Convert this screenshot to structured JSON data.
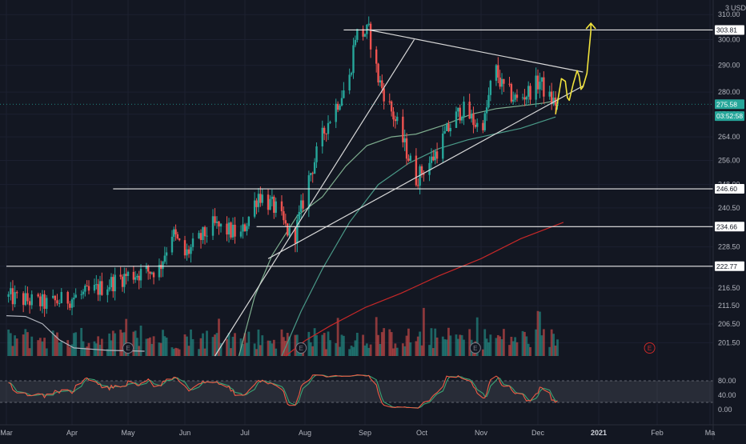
{
  "chart_data": {
    "type": "candlestick",
    "currency_label": "USD",
    "scale_label": "3",
    "year_label": "2021",
    "x_axis": {
      "labels": [
        {
          "label": "Mar",
          "date": "2020-03-01"
        },
        {
          "label": "Apr",
          "date": "2020-04-01"
        },
        {
          "label": "May",
          "date": "2020-05-01"
        },
        {
          "label": "Jun",
          "date": "2020-06-01"
        },
        {
          "label": "Jul",
          "date": "2020-07-01"
        },
        {
          "label": "Aug",
          "date": "2020-08-01"
        },
        {
          "label": "Sep",
          "date": "2020-09-01"
        },
        {
          "label": "Oct",
          "date": "2020-10-01"
        },
        {
          "label": "Nov",
          "date": "2020-11-01"
        },
        {
          "label": "Dec",
          "date": "2020-12-01"
        },
        {
          "label": "2021",
          "date": "2021-01-01"
        },
        {
          "label": "Feb",
          "date": "2021-02-01"
        },
        {
          "label": "Ma",
          "date": "2021-03-01"
        }
      ]
    },
    "y_axis": {
      "scale": "log",
      "range": [
        198,
        316
      ],
      "ticks": [
        310.0,
        300.0,
        290.0,
        280.0,
        272.0,
        264.0,
        256.0,
        248.0,
        240.5,
        234.66,
        228.5,
        222.77,
        216.5,
        211.5,
        206.5,
        201.5
      ]
    },
    "price_badges": [
      {
        "label": "303.81",
        "value": 303.81,
        "color": "#ffffff"
      },
      {
        "label": "275.58",
        "value": 275.58,
        "color": "#26a69a"
      },
      {
        "label": "03:52:58",
        "value": 271.3,
        "color": "#26a69a"
      },
      {
        "label": "246.60",
        "value": 246.6,
        "color": "#ffffff"
      },
      {
        "label": "234.66",
        "value": 234.66,
        "color": "#ffffff"
      },
      {
        "label": "222.77",
        "value": 222.77,
        "color": "#ffffff"
      }
    ],
    "horizontal_levels": [
      {
        "value": 303.81,
        "from": "2020-08-21"
      },
      {
        "value": 246.6,
        "from": "2020-04-23"
      },
      {
        "value": 234.66,
        "from": "2020-07-07"
      },
      {
        "value": 222.77,
        "from": "2020-03-01"
      }
    ],
    "trend_lines": [
      {
        "name": "upper-triangle",
        "points": [
          [
            "2020-09-02",
            304.0
          ],
          [
            "2020-12-24",
            287.5
          ]
        ]
      },
      {
        "name": "lower-triangle",
        "points": [
          [
            "2020-07-13",
            225.0
          ],
          [
            "2020-12-24",
            282.3
          ]
        ]
      },
      {
        "name": "steep-uptrend",
        "points": [
          [
            "2020-06-16",
            198.0
          ],
          [
            "2020-09-27",
            300.0
          ]
        ]
      }
    ],
    "moving_averages": [
      {
        "period": 20,
        "color": "#7fae8f",
        "points": [
          [
            "2020-06-28",
            198
          ],
          [
            "2020-07-06",
            214
          ],
          [
            "2020-07-15",
            226
          ],
          [
            "2020-07-28",
            238
          ],
          [
            "2020-08-10",
            244
          ],
          [
            "2020-08-22",
            254
          ],
          [
            "2020-09-02",
            261
          ],
          [
            "2020-09-15",
            264
          ],
          [
            "2020-09-28",
            265
          ],
          [
            "2020-10-12",
            268
          ],
          [
            "2020-10-27",
            272
          ],
          [
            "2020-11-09",
            274
          ],
          [
            "2020-11-22",
            275
          ],
          [
            "2020-12-04",
            276
          ],
          [
            "2020-12-11",
            277
          ]
        ]
      },
      {
        "period": 50,
        "color": "#4a9a88",
        "points": [
          [
            "2020-07-20",
            198
          ],
          [
            "2020-07-30",
            210
          ],
          [
            "2020-08-10",
            222
          ],
          [
            "2020-08-24",
            236
          ],
          [
            "2020-09-08",
            248
          ],
          [
            "2020-09-24",
            255
          ],
          [
            "2020-10-10",
            260
          ],
          [
            "2020-10-25",
            263
          ],
          [
            "2020-11-08",
            265
          ],
          [
            "2020-11-22",
            267
          ],
          [
            "2020-12-10",
            271
          ]
        ]
      },
      {
        "period": 200,
        "color": "#c62828",
        "points": [
          [
            "2020-07-22",
            198
          ],
          [
            "2020-08-01",
            202
          ],
          [
            "2020-08-14",
            206
          ],
          [
            "2020-09-01",
            211
          ],
          [
            "2020-09-20",
            215
          ],
          [
            "2020-10-10",
            220
          ],
          [
            "2020-11-01",
            225
          ],
          [
            "2020-11-22",
            231
          ],
          [
            "2020-12-14",
            236
          ]
        ]
      }
    ],
    "volume_ma": {
      "color": "#b2b5be",
      "points": [
        [
          "2020-03-01",
          0.5
        ],
        [
          "2020-03-10",
          0.49
        ],
        [
          "2020-03-18",
          0.4
        ],
        [
          "2020-03-26",
          0.2
        ],
        [
          "2020-04-02",
          0.1
        ],
        [
          "2020-04-20",
          0.07
        ],
        [
          "2020-05-10",
          0.06
        ]
      ]
    },
    "earnings_markers": [
      {
        "label": "E",
        "date": "2020-05-01",
        "color": "#787b86"
      },
      {
        "label": "E",
        "date": "2020-07-30",
        "color": "#787b86"
      },
      {
        "label": "E",
        "date": "2020-10-29",
        "color": "#787b86"
      },
      {
        "label": "E",
        "date": "2021-01-28",
        "color": "#c62828"
      }
    ],
    "forecast_path": {
      "color": "#f0e23c",
      "points": [
        [
          "2020-12-10",
          272
        ],
        [
          "2020-12-13",
          285
        ],
        [
          "2020-12-15",
          284
        ],
        [
          "2020-12-16",
          278
        ],
        [
          "2020-12-17",
          277
        ],
        [
          "2020-12-19",
          283
        ],
        [
          "2020-12-21",
          288
        ],
        [
          "2020-12-22",
          286
        ],
        [
          "2020-12-23",
          281
        ],
        [
          "2020-12-24",
          282
        ],
        [
          "2020-12-26",
          287
        ],
        [
          "2020-12-27",
          295
        ],
        [
          "2020-12-28",
          303.5
        ]
      ],
      "arrow_to": [
        "2020-12-28",
        306.5
      ]
    },
    "stochastic": {
      "range": [
        0,
        100
      ],
      "ticks": [
        80.0,
        40.0,
        0.0
      ],
      "band": [
        20,
        80
      ],
      "k_color": "#f05b45",
      "d_color": "#3aa374"
    },
    "price_path": [
      [
        "2020-03-01",
        214
      ],
      [
        "2020-03-20",
        212
      ],
      [
        "2020-04-10",
        215
      ],
      [
        "2020-04-30",
        220
      ],
      [
        "2020-05-18",
        222
      ],
      [
        "2020-05-25",
        233
      ],
      [
        "2020-06-01",
        226
      ],
      [
        "2020-06-15",
        235
      ],
      [
        "2020-06-29",
        232
      ],
      [
        "2020-07-08",
        245
      ],
      [
        "2020-07-17",
        240
      ],
      [
        "2020-07-26",
        230
      ],
      [
        "2020-08-03",
        250
      ],
      [
        "2020-08-12",
        268
      ],
      [
        "2020-08-24",
        285
      ],
      [
        "2020-08-27",
        302
      ],
      [
        "2020-09-03",
        303
      ],
      [
        "2020-09-08",
        285
      ],
      [
        "2020-09-18",
        268
      ],
      [
        "2020-09-28",
        250
      ],
      [
        "2020-10-06",
        256
      ],
      [
        "2020-10-16",
        268
      ],
      [
        "2020-10-22",
        274
      ],
      [
        "2020-10-30",
        268
      ],
      [
        "2020-11-03",
        270
      ],
      [
        "2020-11-08",
        290
      ],
      [
        "2020-11-12",
        282
      ],
      [
        "2020-11-20",
        277
      ],
      [
        "2020-11-26",
        280
      ],
      [
        "2020-12-02",
        284
      ],
      [
        "2020-12-06",
        278
      ],
      [
        "2020-12-11",
        275.6
      ]
    ]
  }
}
